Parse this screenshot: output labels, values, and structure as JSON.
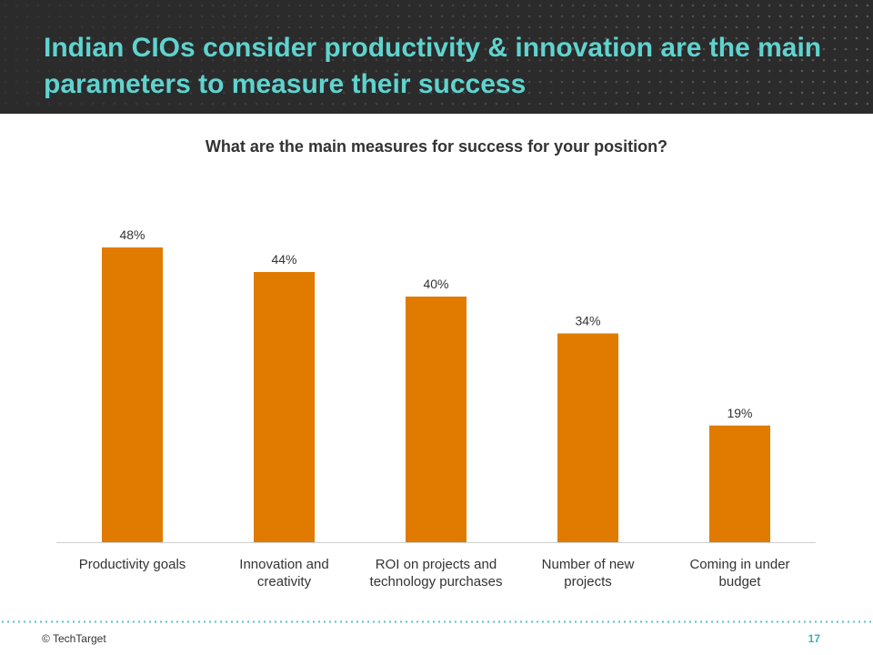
{
  "header": {
    "title": "Indian CIOs consider productivity & innovation are the main parameters to measure their success"
  },
  "chart_data": {
    "type": "bar",
    "title": "What are the main measures for success for your position?",
    "categories": [
      [
        "Productivity goals"
      ],
      [
        "Innovation and",
        "creativity"
      ],
      [
        "ROI on projects and",
        "technology purchases"
      ],
      [
        "Number of new",
        "projects"
      ],
      [
        "Coming in under",
        "budget"
      ]
    ],
    "values": [
      48,
      44,
      40,
      34,
      19
    ],
    "data_labels": [
      "48%",
      "44%",
      "40%",
      "34%",
      "19%"
    ],
    "unit": "%",
    "ylim": [
      0,
      48
    ],
    "grid": false,
    "bar_color": "#e07b00",
    "xlabel": "",
    "ylabel": ""
  },
  "footer": {
    "copyright": "© TechTarget",
    "page_number": "17"
  },
  "colors": {
    "header_bg": "#2b2b2b",
    "title_text": "#5fd3cf",
    "accent": "#4fc4c4",
    "bar": "#e07b00"
  }
}
